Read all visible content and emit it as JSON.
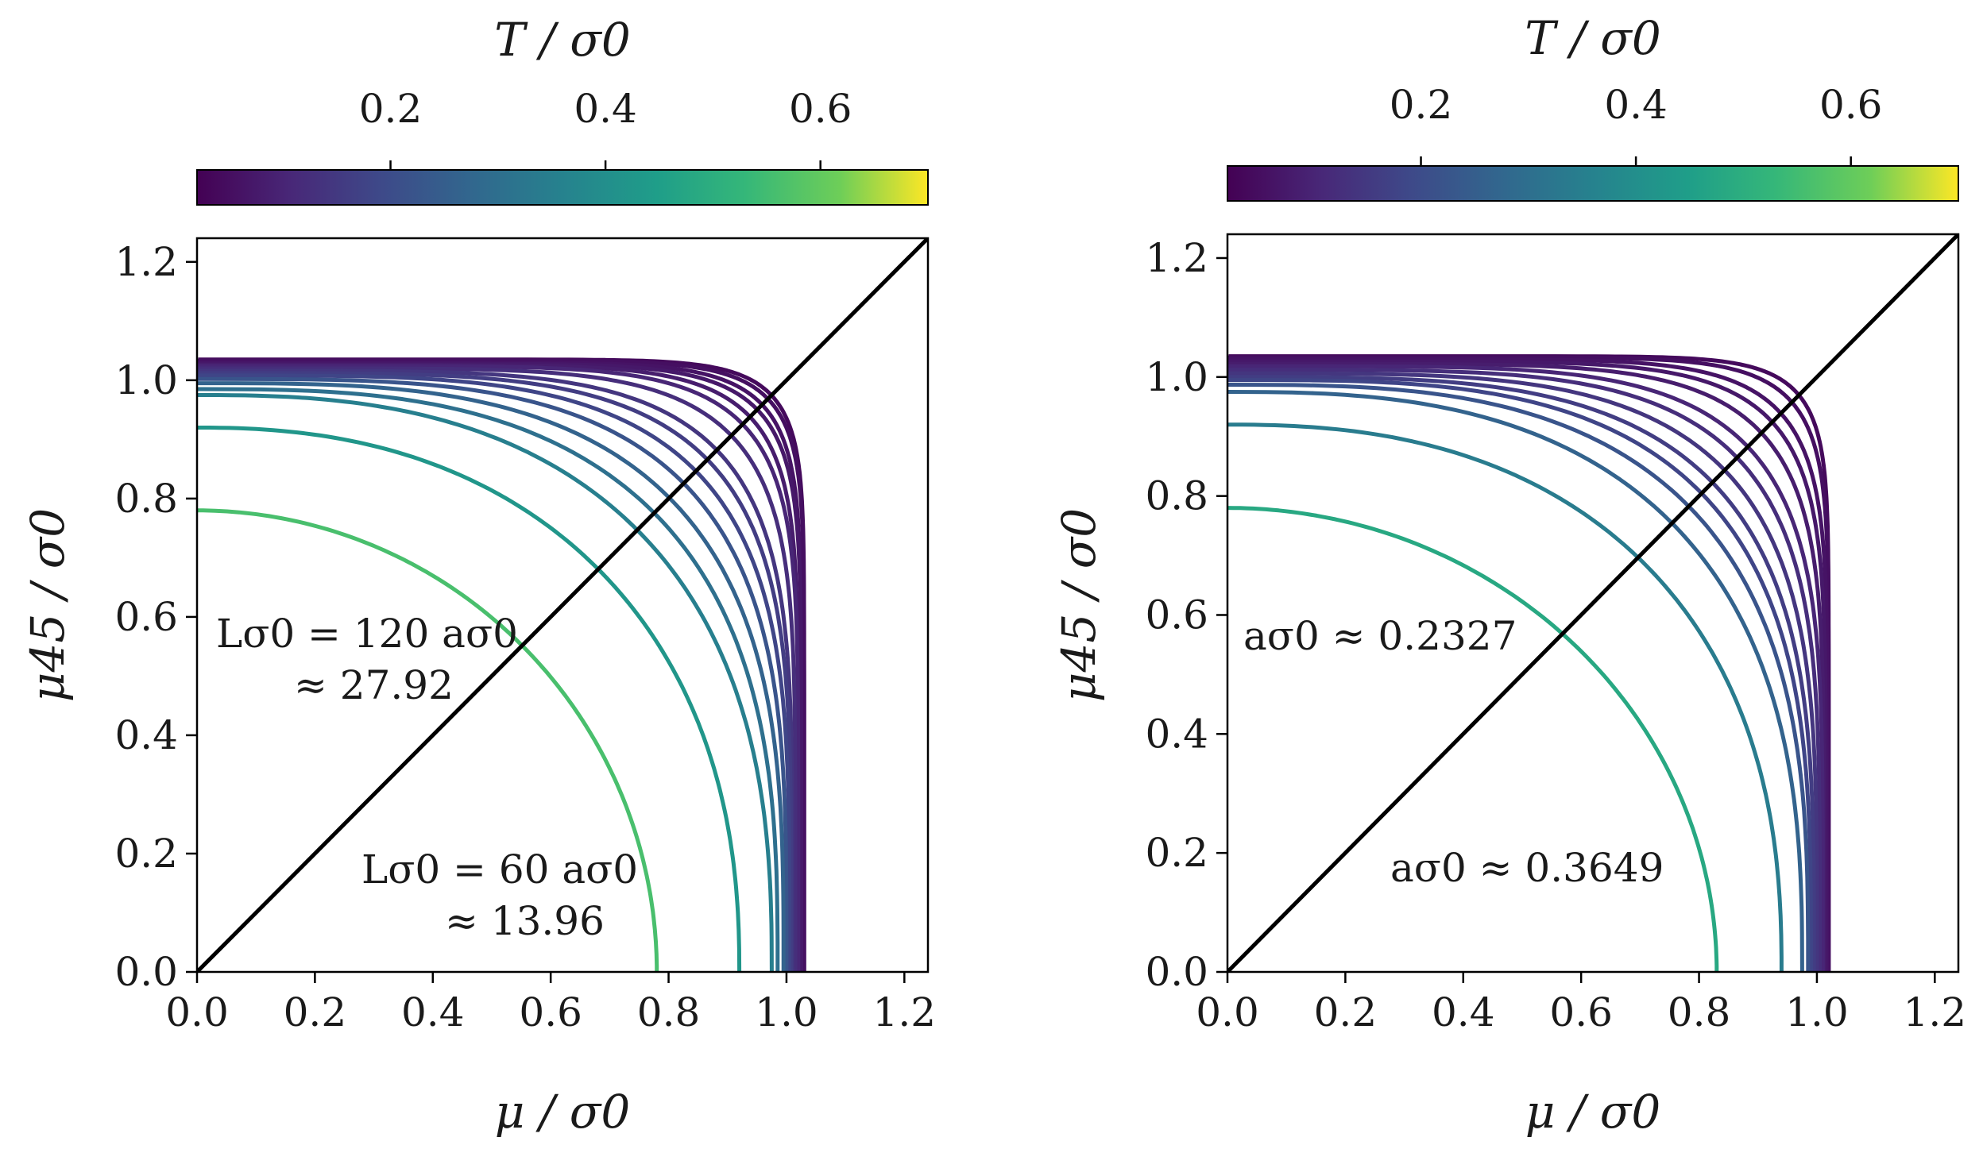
{
  "chart_data": [
    {
      "type": "line",
      "panel": "left",
      "xlabel": "μ / σ0",
      "ylabel": "μ45 / σ0",
      "xlim": [
        0.0,
        1.24
      ],
      "ylim": [
        0.0,
        1.24
      ],
      "xticks": [
        "0.0",
        "0.2",
        "0.4",
        "0.6",
        "0.8",
        "1.0",
        "1.2"
      ],
      "yticks": [
        "0.0",
        "0.2",
        "0.4",
        "0.6",
        "0.8",
        "1.0",
        "1.2"
      ],
      "diagonal": {
        "x": [
          0.0,
          1.24
        ],
        "y": [
          0.0,
          1.24
        ],
        "color": "#000000"
      },
      "colorbar": {
        "label": "T / σ0",
        "range": [
          0.02,
          0.7
        ],
        "ticks": [
          "0.2",
          "0.4",
          "0.6"
        ],
        "tick_values": [
          0.2,
          0.4,
          0.6
        ],
        "colormap": "viridis",
        "location": "top"
      },
      "annotations": [
        {
          "line1": "Lσ0 = 120 aσ0",
          "line2": "≈ 27.92"
        },
        {
          "line1": "Lσ0 = 60 aσ0",
          "line2": "≈ 13.96"
        }
      ],
      "series": [
        {
          "T": 0.04,
          "mu_axis": 1.03,
          "mu45_axis": 1.035,
          "n_diag": 12
        },
        {
          "T": 0.05,
          "mu_axis": 1.03,
          "mu45_axis": 1.033,
          "n_diag": 11
        },
        {
          "T": 0.06,
          "mu_axis": 1.025,
          "mu45_axis": 1.03,
          "n_diag": 10
        },
        {
          "T": 0.07,
          "mu_axis": 1.025,
          "mu45_axis": 1.028,
          "n_diag": 9
        },
        {
          "T": 0.08,
          "mu_axis": 1.02,
          "mu45_axis": 1.026,
          "n_diag": 8
        },
        {
          "T": 0.1,
          "mu_axis": 1.02,
          "mu45_axis": 1.024,
          "n_diag": 7
        },
        {
          "T": 0.12,
          "mu_axis": 1.015,
          "mu45_axis": 1.02,
          "n_diag": 6
        },
        {
          "T": 0.14,
          "mu_axis": 1.01,
          "mu45_axis": 1.016,
          "n_diag": 5
        },
        {
          "T": 0.16,
          "mu_axis": 1.008,
          "mu45_axis": 1.012,
          "n_diag": 4.5
        },
        {
          "T": 0.18,
          "mu_axis": 1.005,
          "mu45_axis": 1.008,
          "n_diag": 4
        },
        {
          "T": 0.22,
          "mu_axis": 1.0,
          "mu45_axis": 1.002,
          "n_diag": 3.6
        },
        {
          "T": 0.26,
          "mu_axis": 0.995,
          "mu45_axis": 0.995,
          "n_diag": 3.2
        },
        {
          "T": 0.3,
          "mu_axis": 0.985,
          "mu45_axis": 0.985,
          "n_diag": 2.9
        },
        {
          "T": 0.35,
          "mu_axis": 0.975,
          "mu45_axis": 0.975,
          "n_diag": 2.6
        },
        {
          "T": 0.42,
          "mu_axis": 0.92,
          "mu45_axis": 0.92,
          "n_diag": 2.3
        },
        {
          "T": 0.56,
          "mu_axis": 0.78,
          "mu45_axis": 0.78,
          "n_diag": 2.0
        }
      ]
    },
    {
      "type": "line",
      "panel": "right",
      "xlabel": "μ / σ0",
      "ylabel": "μ45 / σ0",
      "xlim": [
        0.0,
        1.24
      ],
      "ylim": [
        0.0,
        1.24
      ],
      "xticks": [
        "0.0",
        "0.2",
        "0.4",
        "0.6",
        "0.8",
        "1.0",
        "1.2"
      ],
      "yticks": [
        "0.0",
        "0.2",
        "0.4",
        "0.6",
        "0.8",
        "1.0",
        "1.2"
      ],
      "diagonal": {
        "x": [
          0.0,
          1.24
        ],
        "y": [
          0.0,
          1.24
        ],
        "color": "#000000"
      },
      "colorbar": {
        "label": "T / σ0",
        "range": [
          0.02,
          0.7
        ],
        "ticks": [
          "0.2",
          "0.4",
          "0.6"
        ],
        "tick_values": [
          0.2,
          0.4,
          0.6
        ],
        "colormap": "viridis",
        "location": "top"
      },
      "annotations": [
        {
          "line1": "aσ0 ≈ 0.2327",
          "line2": ""
        },
        {
          "line1": "aσ0 ≈ 0.3649",
          "line2": ""
        }
      ],
      "series": [
        {
          "T": 0.04,
          "mu_axis": 1.02,
          "mu45_axis": 1.035,
          "n_diag": 12
        },
        {
          "T": 0.05,
          "mu_axis": 1.02,
          "mu45_axis": 1.033,
          "n_diag": 10
        },
        {
          "T": 0.06,
          "mu_axis": 1.018,
          "mu45_axis": 1.03,
          "n_diag": 8
        },
        {
          "T": 0.07,
          "mu_axis": 1.015,
          "mu45_axis": 1.026,
          "n_diag": 7
        },
        {
          "T": 0.08,
          "mu_axis": 1.012,
          "mu45_axis": 1.022,
          "n_diag": 6
        },
        {
          "T": 0.1,
          "mu_axis": 1.01,
          "mu45_axis": 1.018,
          "n_diag": 5
        },
        {
          "T": 0.12,
          "mu_axis": 1.005,
          "mu45_axis": 1.012,
          "n_diag": 4.5
        },
        {
          "T": 0.14,
          "mu_axis": 1.0,
          "mu45_axis": 1.006,
          "n_diag": 4
        },
        {
          "T": 0.16,
          "mu_axis": 0.995,
          "mu45_axis": 1.0,
          "n_diag": 3.6
        },
        {
          "T": 0.18,
          "mu_axis": 0.99,
          "mu45_axis": 0.995,
          "n_diag": 3.3
        },
        {
          "T": 0.22,
          "mu_axis": 0.985,
          "mu45_axis": 0.987,
          "n_diag": 3.0
        },
        {
          "T": 0.26,
          "mu_axis": 0.975,
          "mu45_axis": 0.975,
          "n_diag": 2.7
        },
        {
          "T": 0.34,
          "mu_axis": 0.94,
          "mu45_axis": 0.92,
          "n_diag": 2.4
        },
        {
          "T": 0.48,
          "mu_axis": 0.83,
          "mu45_axis": 0.78,
          "n_diag": 2.0
        }
      ]
    }
  ]
}
